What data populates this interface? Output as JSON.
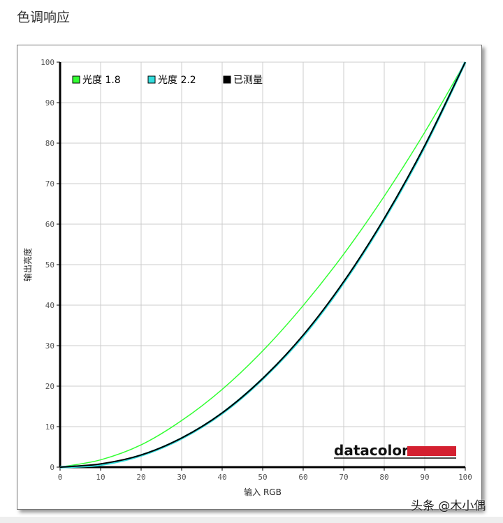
{
  "page": {
    "title": "色调响应",
    "watermark": "头条 @木小偶"
  },
  "chart_data": {
    "type": "line",
    "title": "",
    "xlabel": "输入 RGB",
    "ylabel": "输出亮度",
    "xlim": [
      0,
      100
    ],
    "ylim": [
      0,
      100
    ],
    "xticks": [
      0,
      10,
      20,
      30,
      40,
      50,
      60,
      70,
      80,
      90,
      100
    ],
    "yticks": [
      0,
      10,
      20,
      30,
      40,
      50,
      60,
      70,
      80,
      90,
      100
    ],
    "grid": true,
    "legend_placement": "top-left",
    "logo": "datacolor",
    "series": [
      {
        "name": "光度 1.8",
        "color": "#33ff33",
        "x": [
          0,
          10,
          20,
          30,
          40,
          50,
          60,
          70,
          80,
          90,
          100
        ],
        "y": [
          0,
          1.8,
          5.5,
          11.5,
          19.2,
          28.7,
          39.9,
          52.6,
          66.9,
          82.7,
          100
        ]
      },
      {
        "name": "光度 2.2",
        "color": "#33dddd",
        "x": [
          0,
          10,
          20,
          30,
          40,
          50,
          60,
          70,
          80,
          90,
          100
        ],
        "y": [
          0,
          0.6,
          2.9,
          7.1,
          13.3,
          21.8,
          32.4,
          45.6,
          61.2,
          79.2,
          100
        ]
      },
      {
        "name": "已测量",
        "color": "#000000",
        "x": [
          0,
          10,
          20,
          30,
          40,
          50,
          60,
          70,
          80,
          90,
          100
        ],
        "y": [
          0,
          0.8,
          3.0,
          7.2,
          13.4,
          21.9,
          32.6,
          45.8,
          61.4,
          79.4,
          100
        ]
      }
    ]
  }
}
